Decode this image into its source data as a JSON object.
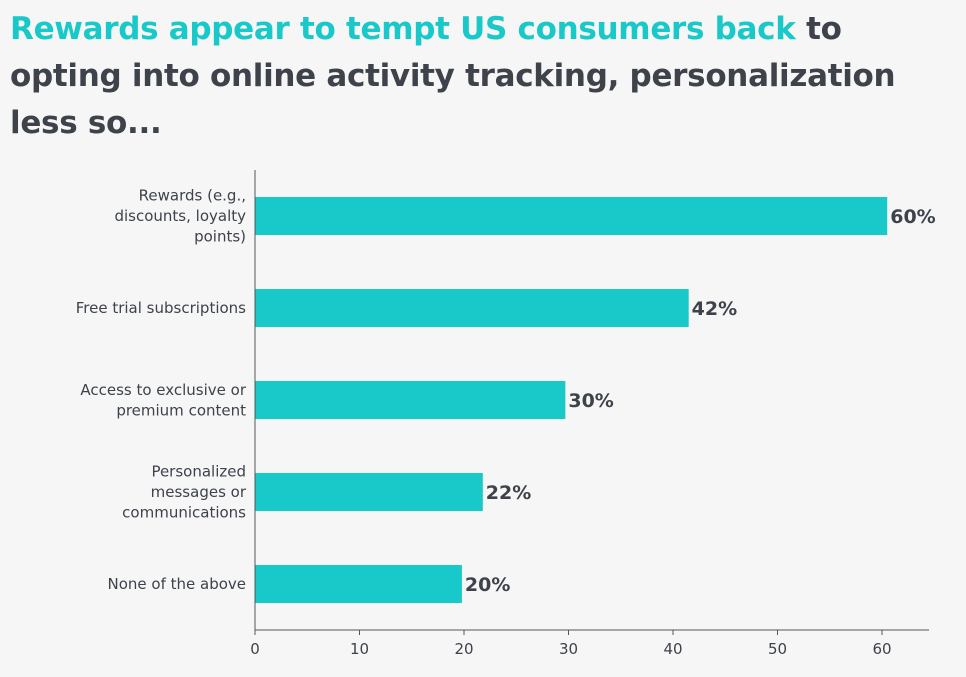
{
  "title": {
    "highlight": "Rewards appear to tempt US consumers back",
    "rest": " to opting into online activity tracking, personalization less so..."
  },
  "colors": {
    "accent": "#19c8c8",
    "text": "#3d424b",
    "axis": "#555555",
    "background": "#f6f6f6"
  },
  "chart_data": {
    "type": "bar",
    "orientation": "horizontal",
    "categories": [
      [
        "Rewards (e.g.,",
        "discounts, loyalty",
        "points)"
      ],
      [
        "Free trial subscriptions"
      ],
      [
        "Access to exclusive or",
        "premium content"
      ],
      [
        "Personalized",
        "messages or",
        "communications"
      ],
      [
        "None of the above"
      ]
    ],
    "values": [
      60.5,
      41.5,
      29.7,
      21.8,
      19.8
    ],
    "value_labels": [
      "60%",
      "42%",
      "30%",
      "22%",
      "20%"
    ],
    "xlim": [
      0,
      64
    ],
    "xticks": [
      0,
      10,
      20,
      30,
      40,
      50,
      60
    ],
    "xlabel": "",
    "ylabel": "",
    "grid": false
  }
}
